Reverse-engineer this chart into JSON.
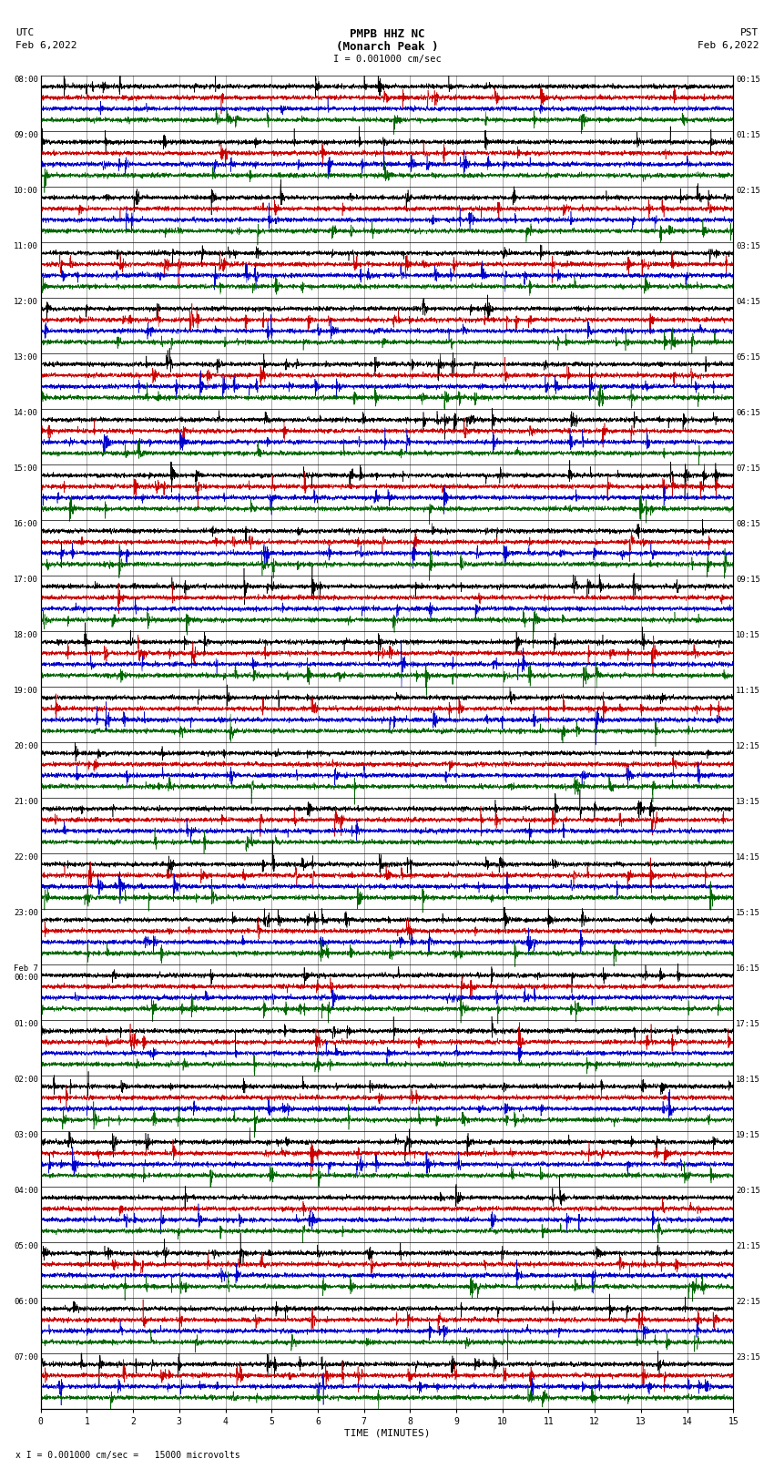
{
  "title_line1": "PMPB HHZ NC",
  "title_line2": "(Monarch Peak )",
  "scale_label": "I = 0.001000 cm/sec",
  "bottom_label": "x I = 0.001000 cm/sec =   15000 microvolts",
  "xlabel": "TIME (MINUTES)",
  "left_date_line1": "UTC",
  "left_date_line2": "Feb 6,2022",
  "right_date_line1": "PST",
  "right_date_line2": "Feb 6,2022",
  "num_rows": 24,
  "traces_per_row": 4,
  "colors": [
    "#000000",
    "#cc0000",
    "#0000cc",
    "#006600"
  ],
  "bg_color": "#ffffff",
  "grid_color": "#888888",
  "time_axis_max": 15,
  "fig_width": 8.5,
  "fig_height": 16.13,
  "dpi": 100,
  "noise_amplitude": 0.06,
  "left_labels_utc": [
    "08:00",
    "09:00",
    "10:00",
    "11:00",
    "12:00",
    "13:00",
    "14:00",
    "15:00",
    "16:00",
    "17:00",
    "18:00",
    "19:00",
    "20:00",
    "21:00",
    "22:00",
    "23:00",
    "Feb 7\n00:00",
    "01:00",
    "02:00",
    "03:00",
    "04:00",
    "05:00",
    "06:00",
    "07:00"
  ],
  "right_labels_pst": [
    "00:15",
    "01:15",
    "02:15",
    "03:15",
    "04:15",
    "05:15",
    "06:15",
    "07:15",
    "08:15",
    "09:15",
    "10:15",
    "11:15",
    "12:15",
    "13:15",
    "14:15",
    "15:15",
    "16:15",
    "17:15",
    "18:15",
    "19:15",
    "20:15",
    "21:15",
    "22:15",
    "23:15"
  ]
}
